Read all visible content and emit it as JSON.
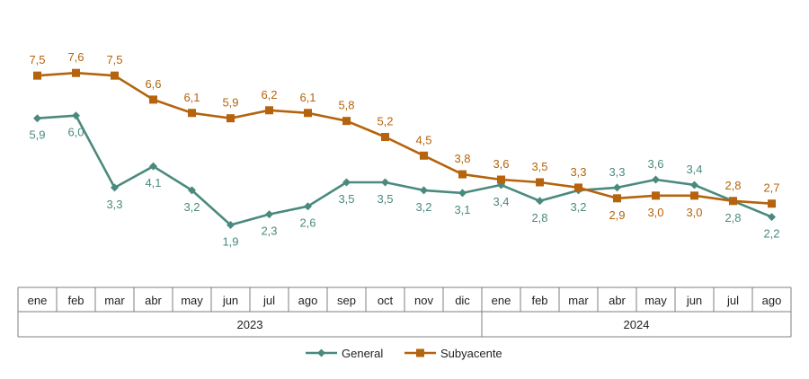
{
  "chart_data": {
    "type": "line",
    "title": "",
    "xlabel": "",
    "ylabel": "",
    "months": [
      "ene",
      "feb",
      "mar",
      "abr",
      "may",
      "jun",
      "jul",
      "ago",
      "sep",
      "oct",
      "nov",
      "dic",
      "ene",
      "feb",
      "mar",
      "abr",
      "may",
      "jun",
      "jul",
      "ago"
    ],
    "years": [
      {
        "label": "2023",
        "span": 12
      },
      {
        "label": "2024",
        "span": 8
      }
    ],
    "series": [
      {
        "name": "General",
        "color": "#4a8a7e",
        "marker": "diamond",
        "values": [
          5.9,
          6.0,
          3.3,
          4.1,
          3.2,
          1.9,
          2.3,
          2.6,
          3.5,
          3.5,
          3.2,
          3.1,
          3.4,
          2.8,
          3.2,
          3.3,
          3.6,
          3.4,
          2.8,
          2.2
        ],
        "labels": [
          "5,9",
          "6,0",
          "3,3",
          "4,1",
          "3,2",
          "1,9",
          "2,3",
          "2,6",
          "3,5",
          "3,5",
          "3,2",
          "3,1",
          "3,4",
          "2,8",
          "3,2",
          "3,3",
          "3,6",
          "3,4",
          "2,8",
          "2,2"
        ]
      },
      {
        "name": "Subyacente",
        "color": "#b5630c",
        "marker": "square",
        "values": [
          7.5,
          7.6,
          7.5,
          6.6,
          6.1,
          5.9,
          6.2,
          6.1,
          5.8,
          5.2,
          4.5,
          3.8,
          3.6,
          3.5,
          3.3,
          2.9,
          3.0,
          3.0,
          2.8,
          2.7
        ],
        "labels": [
          "7,5",
          "7,6",
          "7,5",
          "6,6",
          "6,1",
          "5,9",
          "6,2",
          "6,1",
          "5,8",
          "5,2",
          "4,5",
          "3,8",
          "3,6",
          "3,5",
          "3,3",
          "2,9",
          "3,0",
          "3,0",
          "2,8",
          "2,7"
        ]
      }
    ],
    "legend_position": "bottom",
    "grid": false
  }
}
